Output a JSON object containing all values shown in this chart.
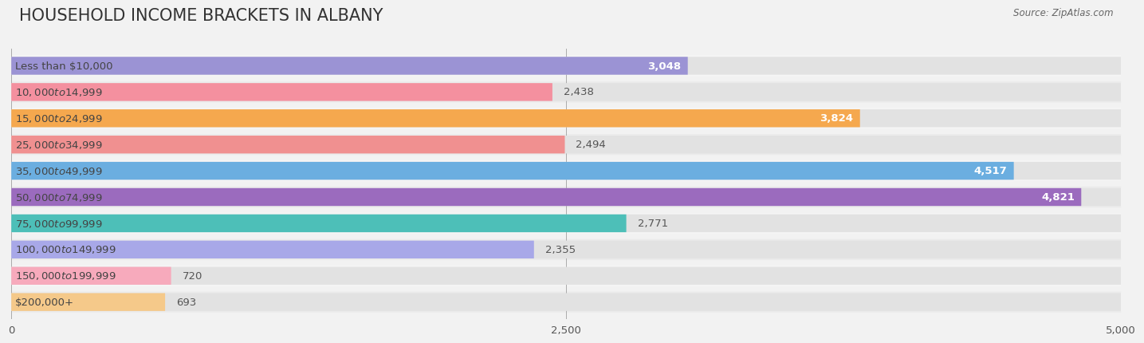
{
  "title": "HOUSEHOLD INCOME BRACKETS IN ALBANY",
  "source": "Source: ZipAtlas.com",
  "categories": [
    "Less than $10,000",
    "$10,000 to $14,999",
    "$15,000 to $24,999",
    "$25,000 to $34,999",
    "$35,000 to $49,999",
    "$50,000 to $74,999",
    "$75,000 to $99,999",
    "$100,000 to $149,999",
    "$150,000 to $199,999",
    "$200,000+"
  ],
  "values": [
    3048,
    2438,
    3824,
    2494,
    4517,
    4821,
    2771,
    2355,
    720,
    693
  ],
  "bar_colors": [
    "#9B93D4",
    "#F4909F",
    "#F5A84E",
    "#F09090",
    "#6BAEE0",
    "#9B6BBE",
    "#4DBFB8",
    "#A8A8E8",
    "#F7AABC",
    "#F5C98A"
  ],
  "value_inside": [
    true,
    false,
    true,
    false,
    true,
    true,
    false,
    false,
    false,
    false
  ],
  "xlim": [
    0,
    5000
  ],
  "xticks": [
    0,
    2500,
    5000
  ],
  "background_color": "#f2f2f2",
  "bar_background_color": "#e2e2e2",
  "row_bg_even": "#ebebeb",
  "row_bg_odd": "#f5f5f5",
  "title_fontsize": 15,
  "label_fontsize": 9.5,
  "value_fontsize": 9.5,
  "value_white_color": "#ffffff",
  "value_dark_color": "#555555",
  "label_text_color": "#444444"
}
